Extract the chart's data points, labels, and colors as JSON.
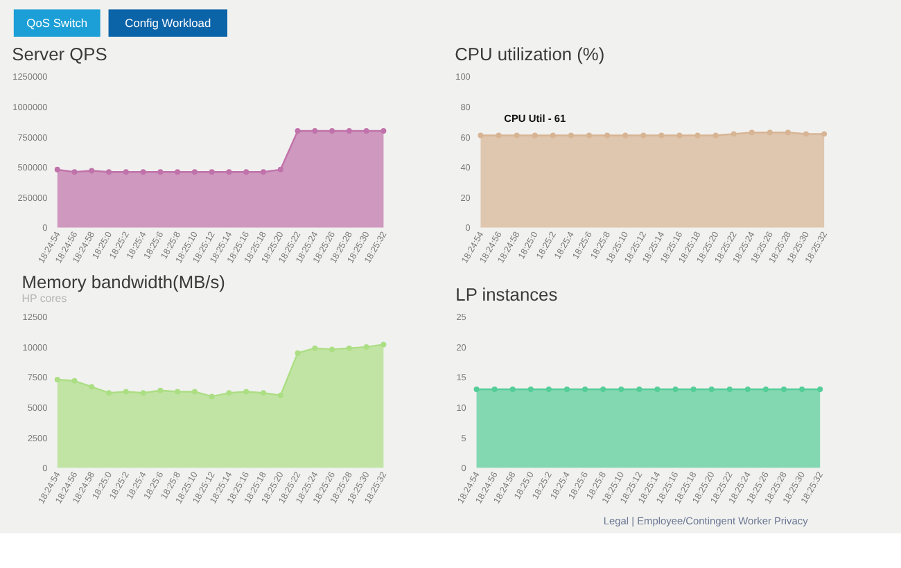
{
  "chart_data": [
    {
      "type": "other",
      "annotations": [
        "QoS Switch",
        "Config Workload"
      ],
      "colors": [
        "#1c9fd6",
        "#0b63a8"
      ]
    },
    {
      "type": "area",
      "title": "Server QPS",
      "categories": [
        "18:24:54",
        "18:24:56",
        "18:24:58",
        "18:25:0",
        "18:25:2",
        "18:25:4",
        "18:25:6",
        "18:25:8",
        "18:25:10",
        "18:25:12",
        "18:25:14",
        "18:25:16",
        "18:25:18",
        "18:25:20",
        "18:25:22",
        "18:25:24",
        "18:25:26",
        "18:25:28",
        "18:25:30",
        "18:25:32"
      ],
      "series": [
        {
          "color": "#c072aa",
          "values": [
            480000,
            460000,
            470000,
            460000,
            460000,
            460000,
            460000,
            460000,
            460000,
            460000,
            460000,
            460000,
            460000,
            480000,
            800000,
            800000,
            800000,
            800000,
            800000,
            800000
          ]
        }
      ],
      "ylim": [
        0,
        1250000
      ],
      "yticks": [
        0,
        250000,
        500000,
        750000,
        1000000,
        1250000
      ],
      "marker": "circle",
      "line_style": "solid"
    },
    {
      "type": "area",
      "title": "CPU utilization (%)",
      "categories": [
        "18:24:54",
        "18:24:56",
        "18:24:58",
        "18:25:0",
        "18:25:2",
        "18:25:4",
        "18:25:6",
        "18:25:8",
        "18:25:10",
        "18:25:12",
        "18:25:14",
        "18:25:16",
        "18:25:18",
        "18:25:20",
        "18:25:22",
        "18:25:24",
        "18:25:26",
        "18:25:28",
        "18:25:30",
        "18:25:32"
      ],
      "series": [
        {
          "color": "#d7b493",
          "values": [
            61,
            61,
            61,
            61,
            61,
            61,
            61,
            61,
            61,
            61,
            61,
            61,
            61,
            61,
            62,
            63,
            63,
            63,
            62,
            62
          ]
        }
      ],
      "ylim": [
        0,
        100
      ],
      "yticks": [
        0,
        20,
        40,
        60,
        80,
        100
      ],
      "marker": "circle",
      "line_style": "solid",
      "annotations": [
        {
          "text": "CPU Util - 61",
          "x": "18:25:0",
          "y": 61
        }
      ]
    },
    {
      "type": "area",
      "title": "Memory bandwidth(MB/s)",
      "subtitle": "HP cores",
      "categories": [
        "18:24:54",
        "18:24:56",
        "18:24:58",
        "18:25:0",
        "18:25:2",
        "18:25:4",
        "18:25:6",
        "18:25:8",
        "18:25:10",
        "18:25:12",
        "18:25:14",
        "18:25:16",
        "18:25:18",
        "18:25:20",
        "18:25:22",
        "18:25:24",
        "18:25:26",
        "18:25:28",
        "18:25:30",
        "18:25:32"
      ],
      "series": [
        {
          "color": "#acde84",
          "values": [
            7300,
            7200,
            6700,
            6200,
            6300,
            6200,
            6400,
            6300,
            6300,
            5900,
            6200,
            6300,
            6200,
            6000,
            9500,
            9900,
            9800,
            9900,
            10000,
            10200
          ]
        }
      ],
      "ylim": [
        0,
        12500
      ],
      "yticks": [
        0,
        2500,
        5000,
        7500,
        10000,
        12500
      ],
      "marker": "circle",
      "line_style": "solid"
    },
    {
      "type": "area",
      "title": "LP instances",
      "categories": [
        "18:24:54",
        "18:24:56",
        "18:24:58",
        "18:25:0",
        "18:25:2",
        "18:25:4",
        "18:25:6",
        "18:25:8",
        "18:25:10",
        "18:25:12",
        "18:25:14",
        "18:25:16",
        "18:25:18",
        "18:25:20",
        "18:25:22",
        "18:25:24",
        "18:25:26",
        "18:25:28",
        "18:25:30",
        "18:25:32"
      ],
      "series": [
        {
          "color": "#54cd98",
          "values": [
            13,
            13,
            13,
            13,
            13,
            13,
            13,
            13,
            13,
            13,
            13,
            13,
            13,
            13,
            13,
            13,
            13,
            13,
            13,
            13
          ]
        }
      ],
      "ylim": [
        0,
        25
      ],
      "yticks": [
        0,
        5,
        10,
        15,
        20,
        25
      ],
      "marker": "circle",
      "line_style": "solid"
    },
    {
      "type": "other",
      "annotations": [
        "Legal | Employee/Contingent Worker Privacy"
      ]
    }
  ]
}
